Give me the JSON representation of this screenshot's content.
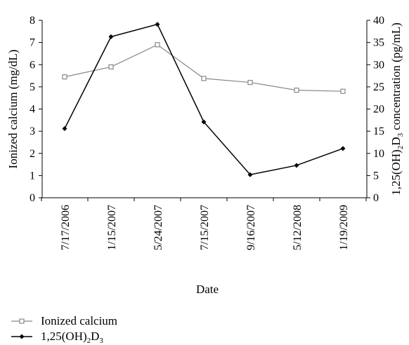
{
  "chart_data": {
    "type": "line",
    "xlabel": "Date",
    "categories": [
      "7/17/2006",
      "1/15/2007",
      "5/24/2007",
      "7/15/2007",
      "9/16/2007",
      "5/12/2008",
      "1/19/2009"
    ],
    "y_left": {
      "label": "Ionized calcium (mg/dL)",
      "lim": [
        0,
        8
      ],
      "ticks": [
        0,
        1,
        2,
        3,
        4,
        5,
        6,
        7,
        8
      ]
    },
    "y_right": {
      "label_prefix": "1,25(OH)",
      "label_sub1": "2",
      "label_mid": "D",
      "label_sub2": "3",
      "label_suffix": " concentration (pg/mL)",
      "lim": [
        0,
        40
      ],
      "ticks": [
        0,
        5,
        10,
        15,
        20,
        25,
        30,
        35,
        40
      ]
    },
    "series": [
      {
        "name": "Ionized calcium",
        "axis": "left",
        "marker": "open-square",
        "color": "#888888",
        "values": [
          5.45,
          5.9,
          6.9,
          5.38,
          5.2,
          4.85,
          4.8
        ]
      },
      {
        "name_prefix": "1,25(OH)",
        "name_sub1": "2",
        "name_mid": "D",
        "name_sub2": "3",
        "axis": "right",
        "marker": "filled-diamond",
        "color": "#000000",
        "values": [
          15.6,
          36.3,
          39.1,
          17.1,
          5.2,
          7.3,
          11.1
        ]
      }
    ],
    "legend": {
      "placement": "bottom-left",
      "item1": "Ionized calcium",
      "item2_prefix": "1,25(OH)",
      "item2_sub1": "2",
      "item2_mid": "D",
      "item2_sub2": "3"
    }
  }
}
